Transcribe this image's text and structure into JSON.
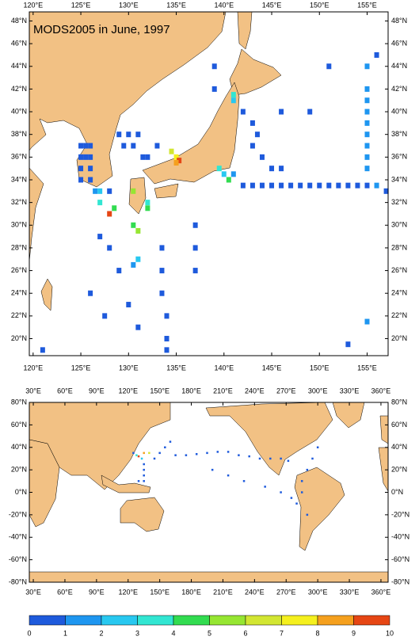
{
  "title": "MODS2005 in June, 1997",
  "colorbar": {
    "levels": [
      0,
      1,
      2,
      3,
      4,
      5,
      6,
      7,
      8,
      9,
      10
    ],
    "colors": [
      "#1e5adc",
      "#1e96f0",
      "#28c8f0",
      "#32e6d2",
      "#32dc50",
      "#96e632",
      "#d2e632",
      "#f5f01e",
      "#f5a01e",
      "#e64614"
    ]
  },
  "top_map": {
    "xlim": [
      119.6,
      157.2
    ],
    "ylim": [
      18.5,
      48.8
    ],
    "xticks": [
      {
        "value": 120,
        "label": "120°E"
      },
      {
        "value": 125,
        "label": "125°E"
      },
      {
        "value": 130,
        "label": "130°E"
      },
      {
        "value": 135,
        "label": "135°E"
      },
      {
        "value": 140,
        "label": "140°E"
      },
      {
        "value": 145,
        "label": "145°E"
      },
      {
        "value": 150,
        "label": "150°E"
      },
      {
        "value": 155,
        "label": "155°E"
      }
    ],
    "yticks": [
      {
        "value": 20,
        "label": "20°N"
      },
      {
        "value": 22,
        "label": "22°N"
      },
      {
        "value": 24,
        "label": "24°N"
      },
      {
        "value": 26,
        "label": "26°N"
      },
      {
        "value": 28,
        "label": "28°N"
      },
      {
        "value": 30,
        "label": "30°N"
      },
      {
        "value": 32,
        "label": "32°N"
      },
      {
        "value": 34,
        "label": "34°N"
      },
      {
        "value": 36,
        "label": "36°N"
      },
      {
        "value": 38,
        "label": "38°N"
      },
      {
        "value": 40,
        "label": "40°N"
      },
      {
        "value": 42,
        "label": "42°N"
      },
      {
        "value": 44,
        "label": "44°N"
      },
      {
        "value": 46,
        "label": "46°N"
      },
      {
        "value": 48,
        "label": "48°N"
      }
    ],
    "cells": {
      "lon": [
        125,
        125.5,
        126,
        125,
        125.5,
        126,
        125,
        126,
        125,
        126,
        126.5,
        127,
        128,
        127,
        129,
        130,
        131,
        129.5,
        130.5,
        131.5,
        132,
        133,
        135,
        135.3,
        135,
        134.5,
        139.5,
        140,
        141,
        140.5,
        128,
        128.5,
        130.5,
        131,
        132,
        132,
        130.5,
        131,
        130.5,
        142,
        143,
        144,
        145,
        146,
        147,
        148,
        149,
        150,
        151,
        152,
        153,
        154,
        155,
        156,
        157,
        155,
        155,
        155,
        155,
        155,
        155,
        155,
        155,
        141,
        141,
        142,
        143,
        143.5,
        143,
        144,
        145,
        146,
        133.5,
        133.5,
        133.5,
        134,
        134,
        134,
        128,
        129,
        130,
        131,
        137,
        137,
        137,
        153,
        155,
        156,
        155,
        151,
        139,
        139,
        146,
        149,
        127,
        126,
        127.5,
        121
      ],
      "lat": [
        37,
        37,
        37,
        36,
        36,
        36,
        35,
        35,
        34,
        34,
        33,
        33,
        33,
        32,
        38,
        38,
        38,
        37,
        37,
        36,
        36,
        37,
        36,
        35.7,
        35.5,
        36.5,
        35,
        34.5,
        34.5,
        34,
        31,
        31.5,
        30,
        29.5,
        32,
        31.5,
        33,
        27,
        26.5,
        33.5,
        33.5,
        33.5,
        33.5,
        33.5,
        33.5,
        33.5,
        33.5,
        33.5,
        33.5,
        33.5,
        33.5,
        33.5,
        33.5,
        33.5,
        33,
        35,
        36,
        37,
        38,
        39,
        40,
        41,
        42,
        41.5,
        41,
        40,
        39,
        38,
        37,
        36,
        35,
        35,
        28,
        26,
        24,
        22,
        20,
        19,
        28,
        26,
        23,
        21,
        30,
        28,
        26,
        19.5,
        21.5,
        45,
        44,
        44,
        42,
        44,
        40,
        40,
        29,
        24,
        22,
        19
      ],
      "values": [
        0.5,
        0.5,
        0.5,
        0.5,
        0.5,
        0.5,
        0.5,
        0.5,
        0.5,
        0.5,
        1.5,
        2.5,
        0.5,
        3.5,
        0.5,
        0.5,
        0.5,
        0.5,
        0.5,
        0.5,
        0.5,
        0.5,
        7.5,
        9.5,
        8.5,
        6.5,
        3.5,
        2.5,
        1.5,
        4.5,
        9.5,
        4.5,
        4.5,
        5.5,
        3.5,
        4.5,
        5.5,
        2.5,
        1.5,
        0.5,
        0.5,
        0.5,
        0.5,
        0.5,
        0.5,
        0.5,
        0.5,
        0.5,
        0.5,
        0.5,
        0.5,
        0.5,
        0.5,
        1.5,
        0.5,
        1.5,
        1.5,
        1.5,
        1.5,
        1.5,
        1.5,
        1.5,
        1.5,
        3.5,
        2.5,
        0.5,
        0.5,
        0.5,
        0.5,
        0.5,
        0.5,
        0.5,
        0.5,
        0.5,
        0.5,
        0.5,
        0.5,
        0.5,
        0.5,
        0.5,
        0.5,
        0.5,
        0.5,
        0.5,
        0.5,
        0.5,
        1.5,
        0.5,
        1.5,
        0.5,
        0.5,
        0.5,
        0.5,
        0.5,
        0.5,
        0.5,
        0.5,
        0.5
      ]
    }
  },
  "bottom_map": {
    "xlim": [
      26.2,
      366.8
    ],
    "ylim": [
      -80,
      80
    ],
    "xticks": [
      {
        "value": 30,
        "label": "30°E"
      },
      {
        "value": 60,
        "label": "60°E"
      },
      {
        "value": 90,
        "label": "90°E"
      },
      {
        "value": 120,
        "label": "120°E"
      },
      {
        "value": 150,
        "label": "150°E"
      },
      {
        "value": 180,
        "label": "180°E"
      },
      {
        "value": 210,
        "label": "210°E"
      },
      {
        "value": 240,
        "label": "240°E"
      },
      {
        "value": 270,
        "label": "270°E"
      },
      {
        "value": 300,
        "label": "300°E"
      },
      {
        "value": 330,
        "label": "330°E"
      },
      {
        "value": 360,
        "label": "360°E"
      }
    ],
    "yticks": [
      {
        "value": -80,
        "label": "-80°N"
      },
      {
        "value": -60,
        "label": "-60°N"
      },
      {
        "value": -40,
        "label": "-40°N"
      },
      {
        "value": -20,
        "label": "-20°N"
      },
      {
        "value": 0,
        "label": "0°N"
      },
      {
        "value": 20,
        "label": "20°N"
      },
      {
        "value": 40,
        "label": "40°N"
      },
      {
        "value": 60,
        "label": "60°N"
      },
      {
        "value": 80,
        "label": "80°N"
      }
    ],
    "cells": {
      "lon": [
        135,
        130,
        140,
        128,
        125,
        133,
        135,
        135,
        135,
        135,
        130,
        145,
        150,
        155,
        165,
        175,
        160,
        185,
        195,
        205,
        215,
        225,
        235,
        245,
        255,
        265,
        272,
        200,
        215,
        230,
        250,
        265,
        275,
        285,
        290,
        295,
        300,
        285,
        280,
        290
      ],
      "lat": [
        35,
        32,
        35,
        33,
        35,
        30,
        25,
        20,
        15,
        10,
        10,
        30,
        35,
        40,
        33,
        33,
        45,
        34,
        35,
        36,
        36,
        33,
        32,
        30,
        30,
        30,
        28,
        20,
        15,
        10,
        5,
        0,
        -5,
        10,
        20,
        30,
        40,
        0,
        -10,
        -20
      ],
      "values": [
        8.5,
        9.5,
        6.5,
        3.5,
        0.5,
        2.5,
        0.5,
        0.5,
        0.5,
        0.5,
        0.5,
        0.5,
        0.5,
        0.5,
        0.5,
        0.5,
        0.5,
        0.5,
        0.5,
        0.5,
        0.5,
        0.5,
        0.5,
        0.5,
        0.5,
        0.5,
        0.5,
        0.5,
        0.5,
        0.5,
        0.5,
        0.5,
        0.5,
        0.5,
        0.5,
        0.5,
        0.5,
        0.5,
        0.5,
        0.5
      ]
    }
  }
}
